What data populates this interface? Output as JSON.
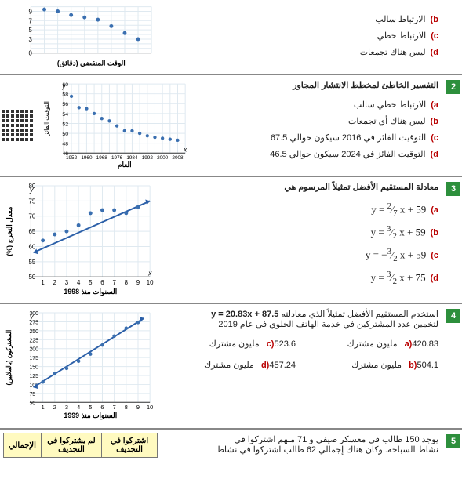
{
  "q1": {
    "options": {
      "b": "الارتباط سالب",
      "c": "الارتباط خطي",
      "d": "ليس هناك تجمعات"
    },
    "chart": {
      "xlabel": "الوقت المنقضي (دقائق)",
      "yticks": [
        0,
        3,
        5,
        7,
        9
      ],
      "points": [
        [
          0.5,
          9.4
        ],
        [
          1,
          9
        ],
        [
          1.5,
          8.2
        ],
        [
          2,
          7.7
        ],
        [
          2.5,
          7.2
        ],
        [
          3,
          5.8
        ],
        [
          3.5,
          4.3
        ],
        [
          4,
          3
        ]
      ],
      "grid_color": "#dfe9f0",
      "dot_color": "#3a6fb0"
    }
  },
  "q2": {
    "title": "التفسير الخاطئ لمخطط الانتشار المجاور",
    "options": {
      "a": "الارتباط خطي سالب",
      "b": "ليس هناك أي تجمعات",
      "c": "التوقيت الفائز في 2016 سيكون حوالي 67.5",
      "d": "التوقيت الفائز في 2024 سيكون حوالي 46.5"
    },
    "chart": {
      "xlabel": "العام",
      "ylabel": "التوقيت الفائز",
      "xticks": [
        1952,
        1960,
        1968,
        1976,
        1984,
        1992,
        2000,
        2008
      ],
      "yticks": [
        46,
        48,
        50,
        52,
        54,
        56,
        58,
        60
      ],
      "points": [
        [
          1952,
          57.5
        ],
        [
          1956,
          55.2
        ],
        [
          1960,
          55
        ],
        [
          1964,
          54
        ],
        [
          1968,
          53
        ],
        [
          1972,
          52.5
        ],
        [
          1976,
          51.5
        ],
        [
          1980,
          50.5
        ],
        [
          1984,
          50.5
        ],
        [
          1988,
          50
        ],
        [
          1992,
          49.5
        ],
        [
          1996,
          49.2
        ],
        [
          2000,
          49
        ],
        [
          2004,
          48.8
        ],
        [
          2008,
          48.6
        ]
      ],
      "grid_color": "#dfe9f0",
      "dot_color": "#3a6fb0"
    }
  },
  "q3": {
    "title": "معادلة المستقيم الأفضل تمثيلاً المرسوم هي",
    "options": {
      "a": "y = \\frac{2}{7}x + 59",
      "b": "y = \\frac{3}{2}x + 59",
      "c": "y = -\\frac{3}{2}x + 59",
      "d": "y = \\frac{3}{2}x + 75"
    },
    "chart": {
      "xlabel": "السنوات منذ 1998",
      "ylabel": "معدل التخرج (%)",
      "xticks": [
        1,
        2,
        3,
        4,
        5,
        6,
        7,
        8,
        9,
        10
      ],
      "yticks": [
        50,
        55,
        60,
        65,
        70,
        75,
        80
      ],
      "points": [
        [
          1,
          62
        ],
        [
          2,
          64
        ],
        [
          3,
          65
        ],
        [
          4,
          67
        ],
        [
          5,
          71
        ],
        [
          6,
          72
        ],
        [
          7,
          72
        ],
        [
          8,
          71
        ],
        [
          9,
          73
        ]
      ],
      "line": {
        "x1": 0.2,
        "y1": 58,
        "x2": 10,
        "y2": 75
      },
      "grid_color": "#dfe9f0",
      "dot_color": "#3a6fb0",
      "line_color": "#2b5fa8"
    }
  },
  "q4": {
    "title_part1": "استخدم المستقيم الأفضل تمثيلاً الذي معادلته",
    "title_eq": "y = 20.83x + 87.5",
    "title_part2": "لتخمين عدد المشتركين في خدمة الهاتف الخلوي في عام 2019",
    "options": {
      "a": "420.83 مليون مشترك",
      "b": "504.1 مليون مشترك",
      "c": "523.6 مليون مشترك",
      "d": "457.24 مليون مشترك"
    },
    "chart": {
      "xlabel": "السنوات منذ 1999",
      "ylabel": "المشتركون (بالملايين)",
      "xticks": [
        1,
        2,
        3,
        4,
        5,
        6,
        7,
        8,
        9,
        10
      ],
      "yticks": [
        50,
        100,
        150,
        200,
        300,
        275,
        250,
        225,
        175,
        125,
        75
      ],
      "yshow": [
        50,
        75,
        100,
        125,
        150,
        175,
        200,
        225,
        250,
        275,
        300
      ],
      "points": [
        [
          1,
          107
        ],
        [
          2,
          130
        ],
        [
          3,
          145
        ],
        [
          4,
          165
        ],
        [
          5,
          185
        ],
        [
          6,
          210
        ],
        [
          7,
          235
        ],
        [
          8,
          257
        ],
        [
          9,
          273
        ]
      ],
      "line": {
        "x1": 0.2,
        "y1": 92,
        "x2": 9.5,
        "y2": 285
      },
      "grid_color": "#dfe9f0",
      "dot_color": "#3a6fb0",
      "line_color": "#2b5fa8"
    }
  },
  "q5": {
    "text1": "يوجد 150 طالب في معسكر صيفي و 71 منهم اشتركوا في",
    "text2": "نشاط السباحة. وكان هناك إجمالي 62 طالب اشتركوا في نشاط",
    "table": {
      "h1": "اشتركوا في التجديف",
      "h2": "لم يشتركوا في التجديف",
      "h3": "الإجمالي"
    }
  }
}
